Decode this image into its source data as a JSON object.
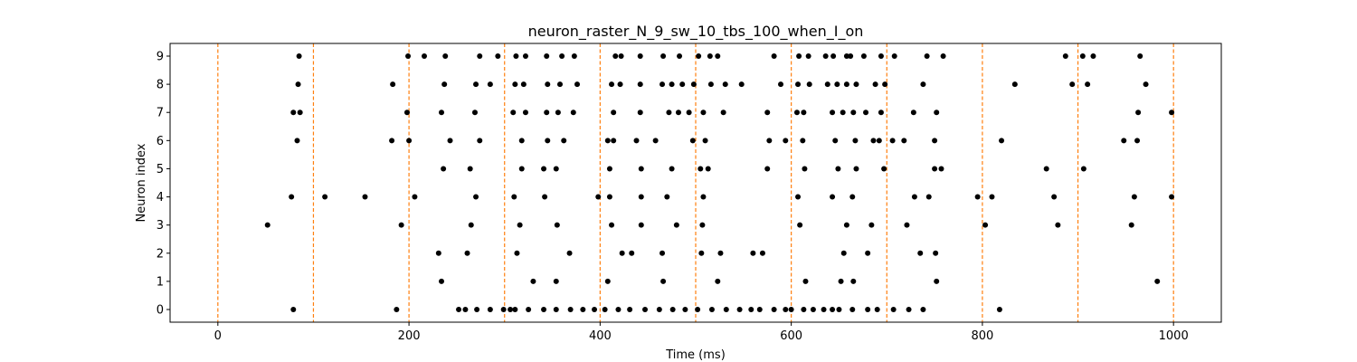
{
  "chart_data": {
    "type": "scatter",
    "title": "neuron_raster_N_9_sw_10_tbs_100_when_I_on",
    "xlabel": "Time (ms)",
    "ylabel": "Neuron index",
    "xlim": [
      -50,
      1050
    ],
    "ylim": [
      -0.45,
      9.45
    ],
    "x_ticks": [
      0,
      200,
      400,
      600,
      800,
      1000
    ],
    "y_ticks": [
      0,
      1,
      2,
      3,
      4,
      5,
      6,
      7,
      8,
      9
    ],
    "grid": false,
    "marker_color": "#000000",
    "vline_color": "#ff7f0e",
    "vlines": [
      0,
      100,
      200,
      300,
      400,
      500,
      600,
      700,
      800,
      900,
      1000
    ],
    "series": [
      {
        "neuron": 0,
        "times": [
          79,
          187,
          252,
          259,
          271,
          285,
          299,
          306,
          311,
          325,
          341,
          354,
          369,
          382,
          394,
          405,
          419,
          431,
          447,
          462,
          476,
          489,
          502,
          517,
          532,
          546,
          558,
          567,
          582,
          594,
          600,
          613,
          623,
          634,
          643,
          650,
          664,
          680,
          690,
          707,
          723,
          738,
          818
        ]
      },
      {
        "neuron": 1,
        "times": [
          234,
          330,
          354,
          408,
          466,
          523,
          615,
          652,
          665,
          752,
          983
        ]
      },
      {
        "neuron": 2,
        "times": [
          231,
          261,
          313,
          368,
          423,
          433,
          465,
          506,
          526,
          560,
          570,
          655,
          680,
          735,
          751
        ]
      },
      {
        "neuron": 3,
        "times": [
          52,
          192,
          265,
          316,
          355,
          412,
          443,
          480,
          507,
          609,
          658,
          684,
          721,
          803,
          879,
          956
        ]
      },
      {
        "neuron": 4,
        "times": [
          77,
          112,
          154,
          206,
          270,
          310,
          342,
          398,
          410,
          443,
          470,
          508,
          607,
          643,
          664,
          729,
          744,
          795,
          810,
          875,
          959,
          998
        ]
      },
      {
        "neuron": 5,
        "times": [
          236,
          264,
          318,
          341,
          354,
          410,
          443,
          475,
          505,
          513,
          575,
          614,
          649,
          668,
          697,
          750,
          757,
          867,
          906
        ]
      },
      {
        "neuron": 6,
        "times": [
          83,
          182,
          200,
          243,
          274,
          318,
          345,
          362,
          408,
          414,
          438,
          458,
          497,
          510,
          577,
          594,
          612,
          646,
          667,
          686,
          692,
          706,
          718,
          750,
          820,
          948,
          962
        ]
      },
      {
        "neuron": 7,
        "times": [
          79,
          86,
          198,
          234,
          269,
          309,
          322,
          344,
          356,
          372,
          414,
          442,
          472,
          482,
          493,
          508,
          529,
          575,
          606,
          613,
          643,
          654,
          665,
          678,
          694,
          728,
          752,
          963,
          998
        ]
      },
      {
        "neuron": 8,
        "times": [
          84,
          183,
          237,
          270,
          285,
          311,
          320,
          345,
          358,
          376,
          412,
          421,
          442,
          465,
          475,
          486,
          498,
          516,
          531,
          548,
          589,
          607,
          619,
          638,
          648,
          658,
          668,
          688,
          698,
          738,
          834,
          894,
          910,
          971
        ]
      },
      {
        "neuron": 9,
        "times": [
          85,
          199,
          216,
          238,
          274,
          293,
          312,
          322,
          344,
          360,
          373,
          416,
          422,
          442,
          466,
          483,
          503,
          515,
          523,
          582,
          608,
          618,
          636,
          644,
          658,
          662,
          676,
          694,
          708,
          742,
          759,
          887,
          905,
          916,
          965
        ]
      }
    ]
  }
}
